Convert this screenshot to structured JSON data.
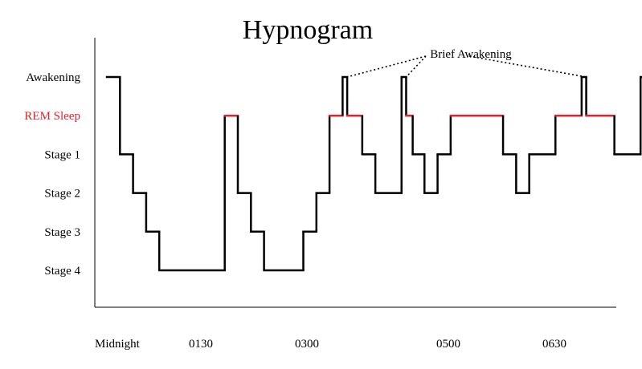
{
  "chart_data": {
    "type": "line",
    "title": "Hypnogram",
    "xlabel": "",
    "ylabel": "",
    "y_levels": [
      "Awakening",
      "REM Sleep",
      "Stage 1",
      "Stage 2",
      "Stage 3",
      "Stage 4"
    ],
    "x_tick_labels": [
      "Midnight",
      "0130",
      "0300",
      "0500",
      "0630"
    ],
    "x_ticks_hours": [
      0,
      1.5,
      3,
      5,
      6.5
    ],
    "xlim_hours": [
      0,
      8.1
    ],
    "steps": [
      {
        "t": 0.0,
        "level": "Awakening"
      },
      {
        "t": 0.2,
        "level": "Stage 1"
      },
      {
        "t": 0.4,
        "level": "Stage 2"
      },
      {
        "t": 0.6,
        "level": "Stage 3"
      },
      {
        "t": 0.8,
        "level": "Stage 4"
      },
      {
        "t": 1.8,
        "level": "REM Sleep"
      },
      {
        "t": 2.0,
        "level": "Stage 2"
      },
      {
        "t": 2.2,
        "level": "Stage 3"
      },
      {
        "t": 2.4,
        "level": "Stage 4"
      },
      {
        "t": 3.0,
        "level": "Stage 3"
      },
      {
        "t": 3.2,
        "level": "Stage 2"
      },
      {
        "t": 3.4,
        "level": "REM Sleep"
      },
      {
        "t": 3.6,
        "level": "Awakening"
      },
      {
        "t": 3.67,
        "level": "REM Sleep"
      },
      {
        "t": 3.9,
        "level": "Stage 1"
      },
      {
        "t": 4.1,
        "level": "Stage 2"
      },
      {
        "t": 4.5,
        "level": "Awakening"
      },
      {
        "t": 4.57,
        "level": "REM Sleep"
      },
      {
        "t": 4.67,
        "level": "Stage 1"
      },
      {
        "t": 4.85,
        "level": "Stage 2"
      },
      {
        "t": 5.05,
        "level": "Stage 1"
      },
      {
        "t": 5.25,
        "level": "REM Sleep"
      },
      {
        "t": 6.05,
        "level": "Stage 1"
      },
      {
        "t": 6.25,
        "level": "Stage 2"
      },
      {
        "t": 6.45,
        "level": "Stage 1"
      },
      {
        "t": 6.85,
        "level": "REM Sleep"
      },
      {
        "t": 7.25,
        "level": "Awakening"
      },
      {
        "t": 7.32,
        "level": "REM Sleep"
      },
      {
        "t": 7.75,
        "level": "Stage 1"
      },
      {
        "t": 8.15,
        "level": "Awakening"
      }
    ],
    "t_end": 8.8,
    "annotation": {
      "text": "Brief Awakening",
      "targets_hours": [
        3.67,
        4.57,
        7.32
      ]
    },
    "colors": {
      "line": "#000000",
      "rem": "#e8202a",
      "rem_label": "#e8202a"
    },
    "grid": false,
    "legend": "none"
  }
}
